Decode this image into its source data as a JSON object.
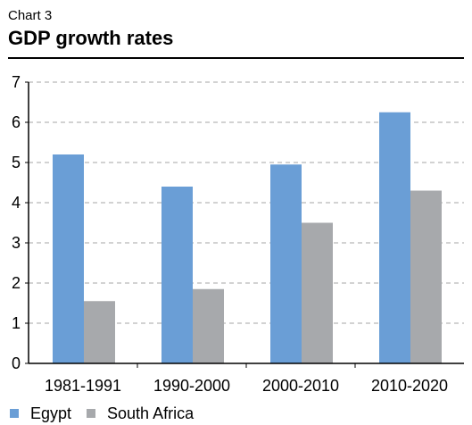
{
  "header": {
    "label": "Chart 3",
    "title": "GDP growth rates"
  },
  "chart_data": {
    "type": "bar",
    "categories": [
      "1981-1991",
      "1990-2000",
      "2000-2010",
      "2010-2020"
    ],
    "series": [
      {
        "name": "Egypt",
        "color": "#6a9ed6",
        "values": [
          5.2,
          4.4,
          4.95,
          6.25
        ]
      },
      {
        "name": "South Africa",
        "color": "#a7a9ac",
        "values": [
          1.55,
          1.85,
          3.5,
          4.3
        ]
      }
    ],
    "title": "GDP growth rates",
    "xlabel": "",
    "ylabel": "",
    "ylim": [
      0,
      7
    ],
    "yticks": [
      "0",
      "1",
      "2",
      "3",
      "4",
      "5",
      "6",
      "7"
    ],
    "grid": "dashed horizontal",
    "legend_position": "bottom-left"
  }
}
